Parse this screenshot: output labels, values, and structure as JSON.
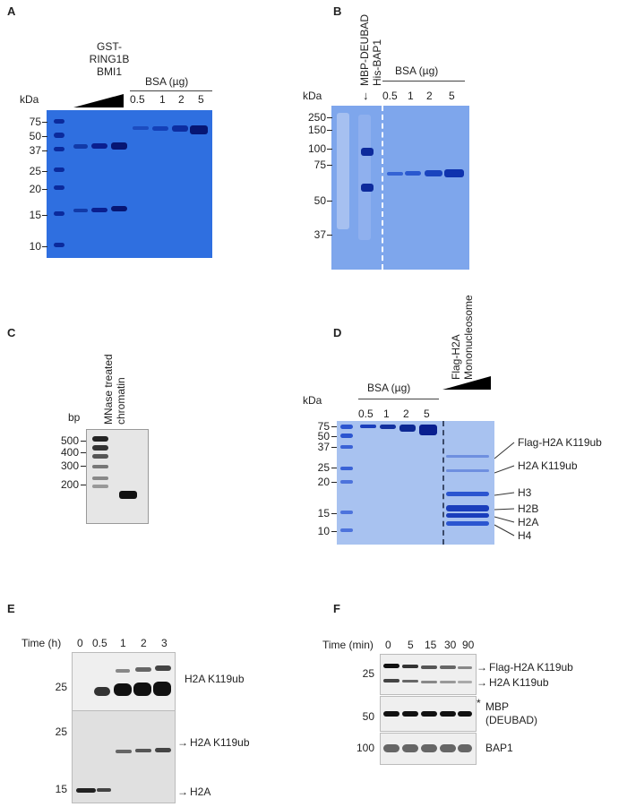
{
  "panelA": {
    "letter": "A",
    "sample_label_1": "GST-",
    "sample_label_2": "RING1B",
    "sample_label_3": "BMI1",
    "bsa_header": "BSA (µg)",
    "bsa_amounts": [
      "0.5",
      "1",
      "2",
      "5"
    ],
    "unit": "kDa",
    "markers": [
      "75",
      "50",
      "37",
      "25",
      "20",
      "15",
      "10"
    ]
  },
  "panelB": {
    "letter": "B",
    "sample_label_1": "MBP-DEUBAD",
    "sample_label_2": "His-BAP1",
    "bsa_header": "BSA (µg)",
    "bsa_amounts": [
      "0.5",
      "1",
      "2",
      "5"
    ],
    "unit": "kDa",
    "markers": [
      "250",
      "150",
      "100",
      "75",
      "50",
      "37"
    ]
  },
  "panelC": {
    "letter": "C",
    "unit": "bp",
    "sample_label_1": "MNase treated",
    "sample_label_2": "chromatin",
    "markers": [
      "500",
      "400",
      "300",
      "200"
    ]
  },
  "panelD": {
    "letter": "D",
    "unit": "kDa",
    "bsa_header": "BSA (µg)",
    "bsa_amounts": [
      "0.5",
      "1",
      "2",
      "5"
    ],
    "sample_label_1": "Flag-H2A",
    "sample_label_2": "Mononucleosome",
    "markers": [
      "75",
      "50",
      "37",
      "25",
      "20",
      "15",
      "10"
    ],
    "bands": [
      "Flag-H2A K119ub",
      "H2A K119ub",
      "H3",
      "H2B",
      "H2A",
      "H4"
    ]
  },
  "panelE": {
    "letter": "E",
    "time_label": "Time (h)",
    "times": [
      "0",
      "0.5",
      "1",
      "2",
      "3"
    ],
    "top_marker": "25",
    "top_band": "H2A K119ub",
    "bottom_markers": [
      "25",
      "15"
    ],
    "bottom_bands": [
      "H2A K119ub",
      "H2A"
    ]
  },
  "panelF": {
    "letter": "F",
    "time_label": "Time (min)",
    "times": [
      "0",
      "5",
      "15",
      "30",
      "90"
    ],
    "blot1_marker": "25",
    "blot1_bands": [
      "Flag-H2A K119ub",
      "H2A K119ub"
    ],
    "blot2_marker": "50",
    "blot2_band_1": "MBP",
    "blot2_band_2": "(DEUBAD)",
    "blot3_marker": "100",
    "blot3_band": "BAP1"
  },
  "colors": {
    "coomassie": "#2f6fe0",
    "band": "#0a1f8f",
    "blot_bg": "#efefef"
  }
}
